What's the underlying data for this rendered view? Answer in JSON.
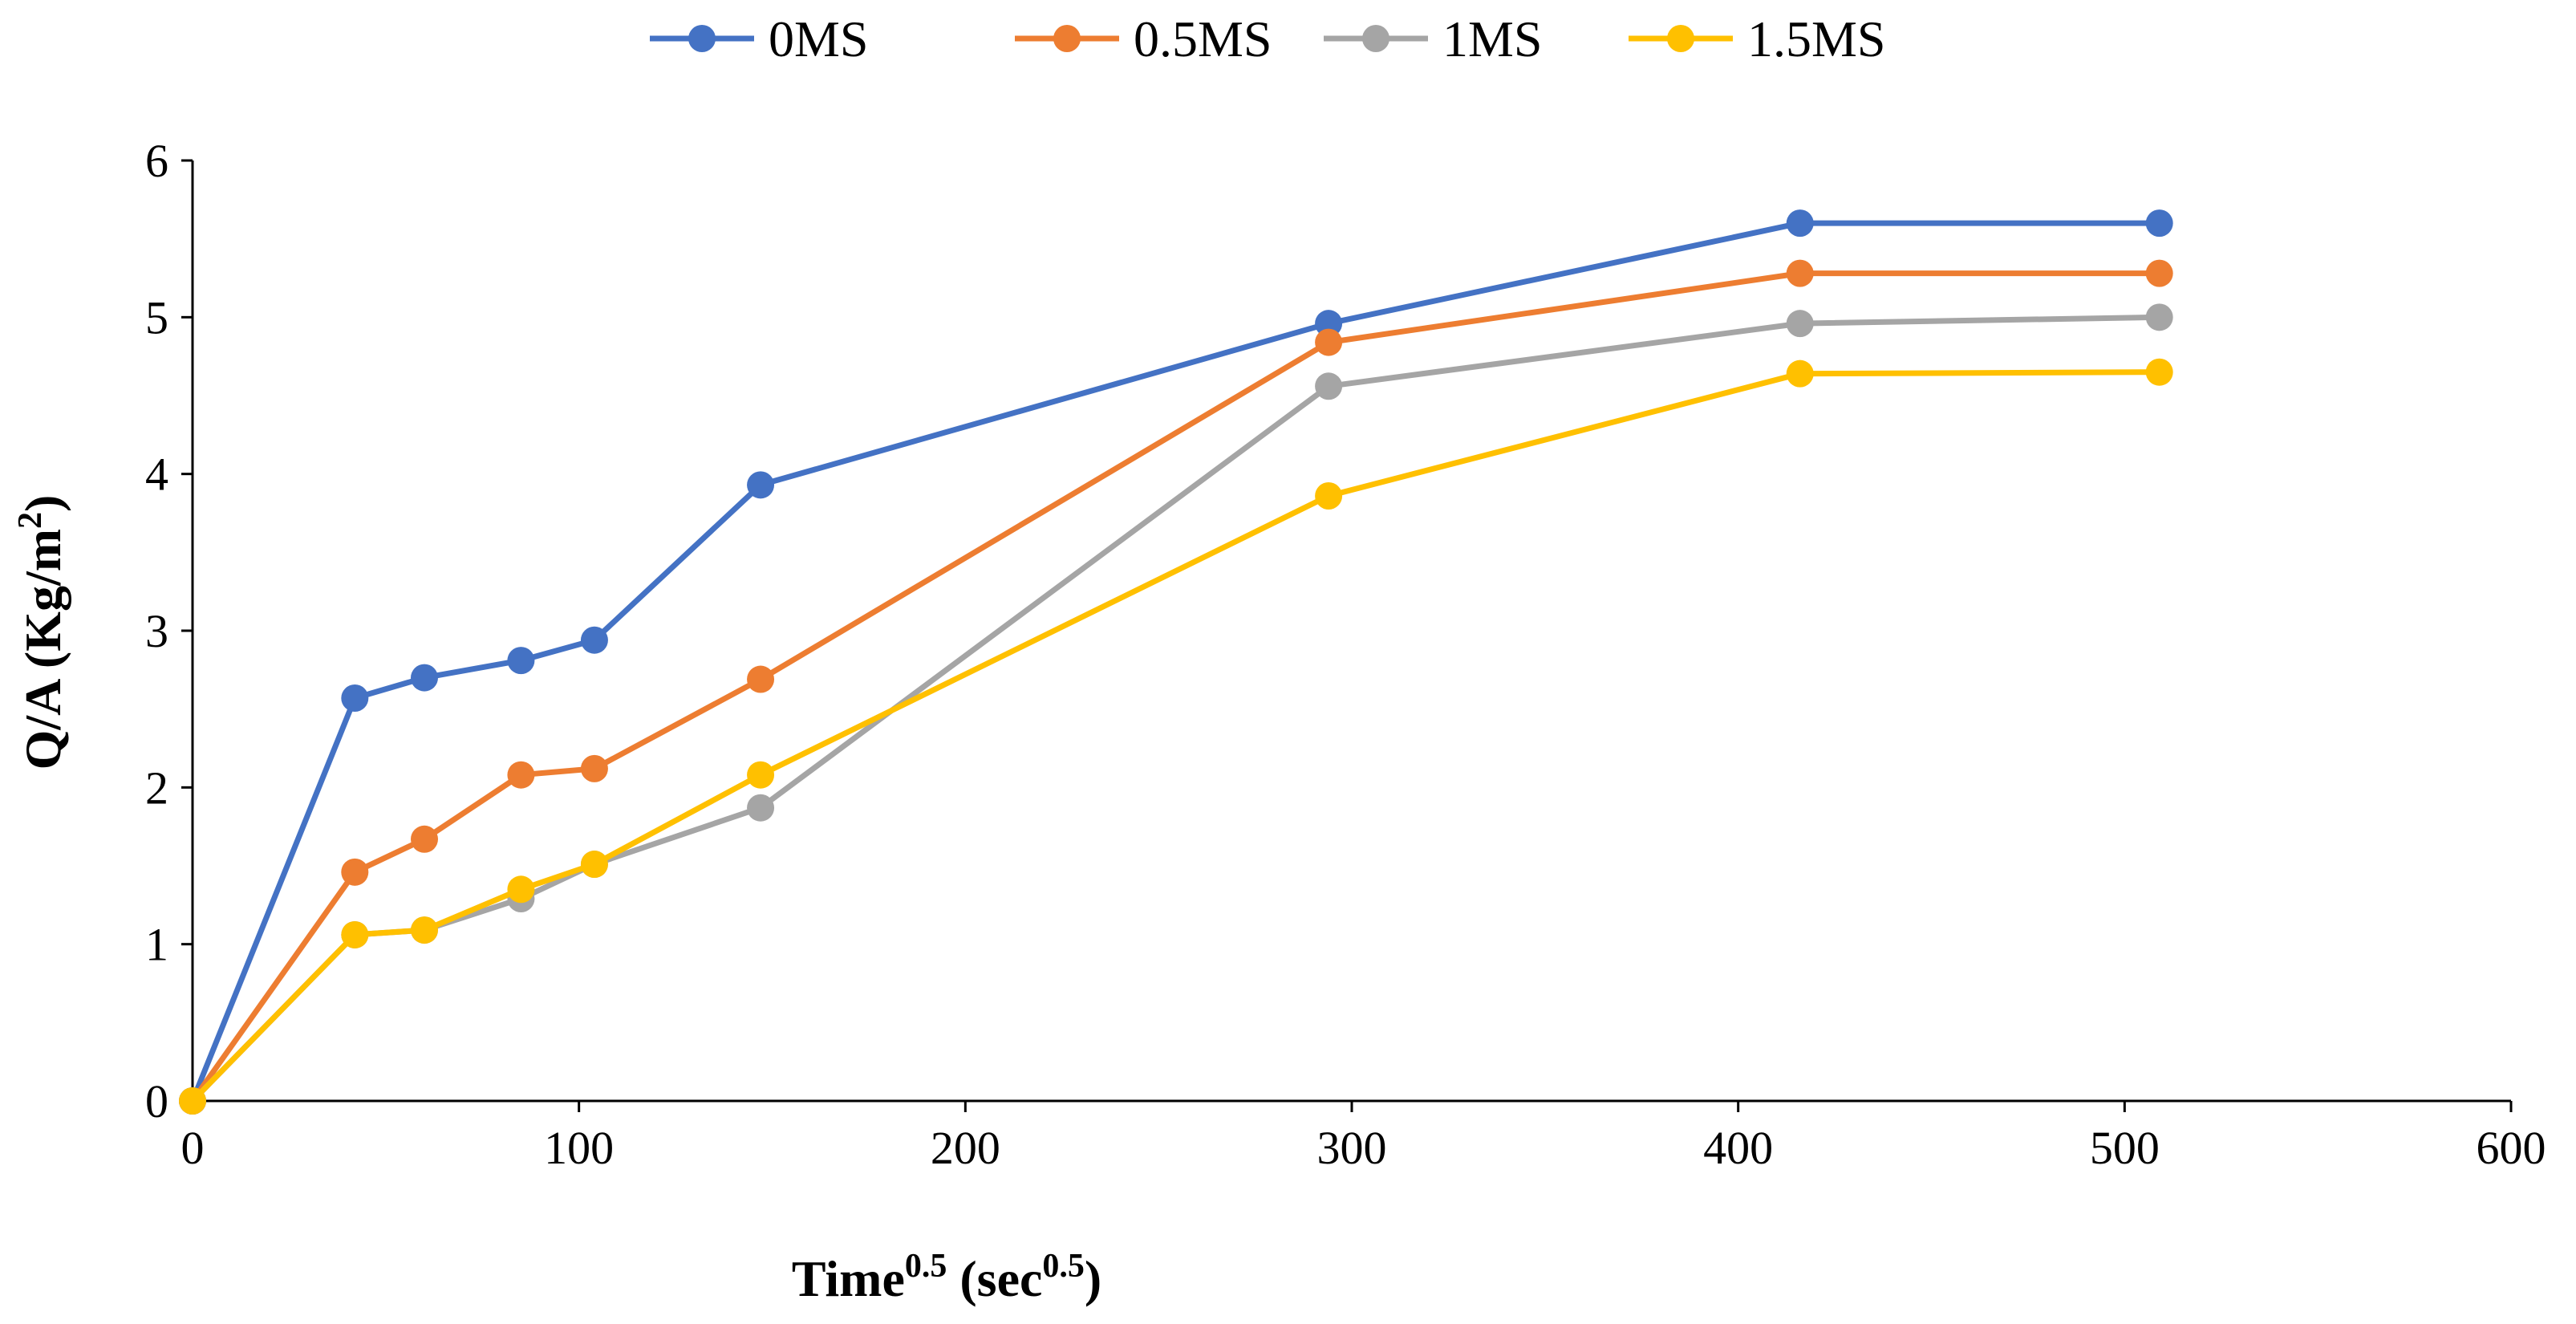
{
  "chart_data": {
    "type": "line",
    "title": "",
    "xlabel": {
      "main": "Time",
      "main_sup": "0.5",
      "unit": "(sec",
      "unit_sup": "0.5",
      "unit_close": ")"
    },
    "ylabel": {
      "main": "Q/A (Kg/m",
      "sup": "2",
      "close": ")"
    },
    "xlim": [
      0,
      600
    ],
    "ylim": [
      0,
      6
    ],
    "xticks": [
      "0",
      "100",
      "200",
      "300",
      "400",
      "500",
      "600"
    ],
    "yticks": [
      "0",
      "1",
      "2",
      "3",
      "4",
      "5",
      "6"
    ],
    "grid": false,
    "legend_position": "top",
    "series": [
      {
        "name": "0MS",
        "color": "#4472C4",
        "points": [
          [
            0,
            0
          ],
          [
            42,
            2.57
          ],
          [
            60,
            2.7
          ],
          [
            85,
            2.81
          ],
          [
            104,
            2.94
          ],
          [
            147,
            3.93
          ],
          [
            294,
            4.96
          ],
          [
            416,
            5.6
          ],
          [
            509,
            5.6
          ]
        ]
      },
      {
        "name": "0.5MS",
        "color": "#ED7D31",
        "points": [
          [
            0,
            0
          ],
          [
            42,
            1.46
          ],
          [
            60,
            1.67
          ],
          [
            85,
            2.08
          ],
          [
            104,
            2.12
          ],
          [
            147,
            2.69
          ],
          [
            294,
            4.84
          ],
          [
            416,
            5.28
          ],
          [
            509,
            5.28
          ]
        ]
      },
      {
        "name": "1MS",
        "color": "#A5A5A5",
        "points": [
          [
            0,
            0
          ],
          [
            42,
            1.06
          ],
          [
            60,
            1.09
          ],
          [
            85,
            1.29
          ],
          [
            104,
            1.51
          ],
          [
            147,
            1.87
          ],
          [
            294,
            4.56
          ],
          [
            416,
            4.96
          ],
          [
            509,
            5.0
          ]
        ]
      },
      {
        "name": "1.5MS",
        "color": "#FFC000",
        "points": [
          [
            0,
            0
          ],
          [
            42,
            1.06
          ],
          [
            60,
            1.09
          ],
          [
            85,
            1.35
          ],
          [
            104,
            1.51
          ],
          [
            147,
            2.08
          ],
          [
            294,
            3.86
          ],
          [
            416,
            4.64
          ],
          [
            509,
            4.65
          ]
        ]
      }
    ]
  }
}
